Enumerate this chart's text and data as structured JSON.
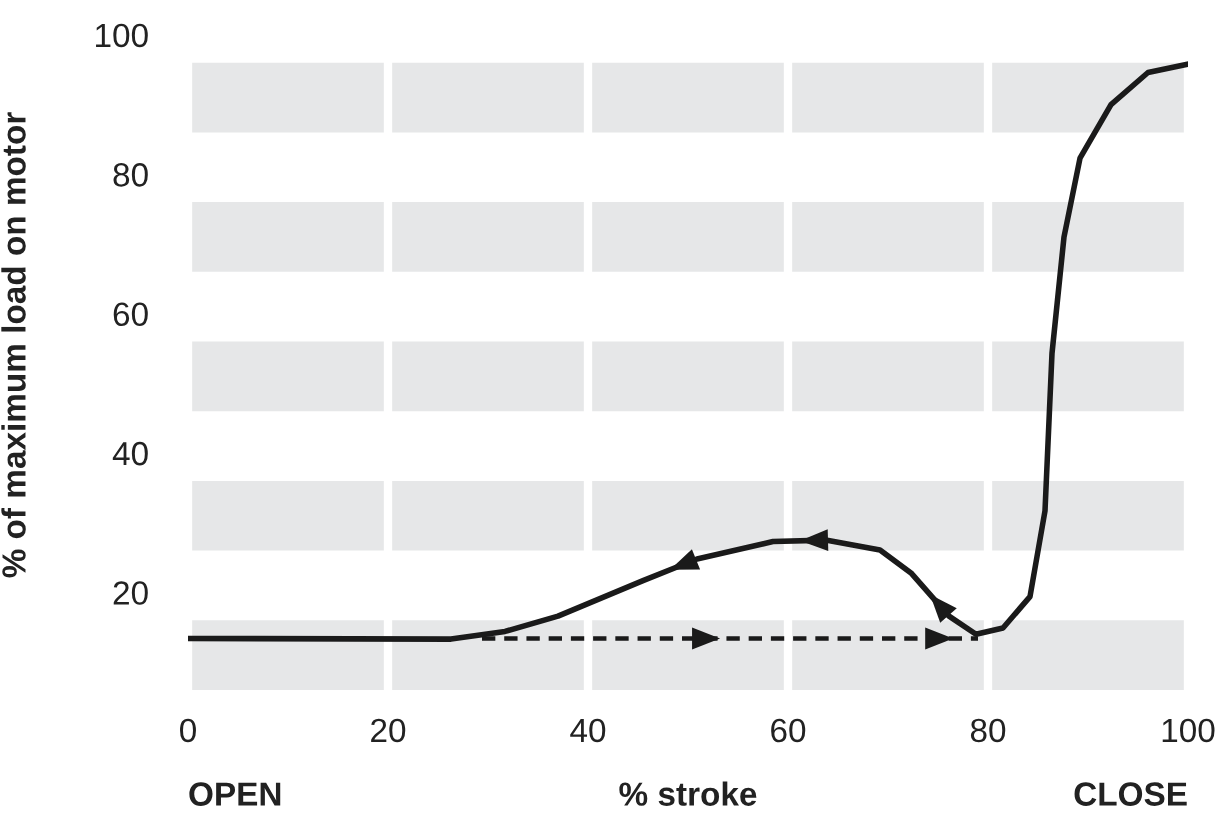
{
  "chart_data": {
    "type": "line",
    "xlabel": "% stroke",
    "ylabel": "% of maximum load on motor",
    "annotations": [
      "OPEN",
      "CLOSE"
    ],
    "xlim": [
      0,
      100
    ],
    "ylim": [
      6,
      105
    ],
    "xticks": [
      0,
      20,
      40,
      60,
      80,
      100
    ],
    "yticks": [
      20,
      40,
      60,
      80,
      100
    ],
    "grid": "x",
    "bands": [
      {
        "axis": "y",
        "from": 6,
        "to": 16,
        "color": "#e6e7e8"
      },
      {
        "axis": "y",
        "from": 26,
        "to": 36,
        "color": "#e6e7e8"
      },
      {
        "axis": "y",
        "from": 46,
        "to": 56,
        "color": "#e6e7e8"
      },
      {
        "axis": "y",
        "from": 66,
        "to": 76,
        "color": "#e6e7e8"
      },
      {
        "axis": "y",
        "from": 86,
        "to": 96,
        "color": "#e6e7e8"
      }
    ],
    "series": [
      {
        "color": "#1a1a1a",
        "line_style": "solid",
        "x": [
          0,
          26.3,
          31.7,
          37,
          45.5,
          50.9,
          58.5,
          63.9,
          69.2,
          72.3,
          76.1,
          78.8,
          81.5,
          84.2,
          85.7,
          86.4,
          87.6,
          89.2,
          92.3,
          96,
          100
        ],
        "values": [
          13.4,
          13.3,
          14.4,
          16.6,
          21.7,
          24.8,
          27.3,
          27.5,
          26.1,
          22.8,
          16.6,
          14,
          14.9,
          19.4,
          31.7,
          54.3,
          71,
          82.3,
          90,
          94.6,
          95.8
        ]
      },
      {
        "color": "#1a1a1a",
        "line_style": "dashed",
        "x": [
          29.4,
          79
        ],
        "values": [
          13.4,
          13.4
        ]
      }
    ]
  }
}
